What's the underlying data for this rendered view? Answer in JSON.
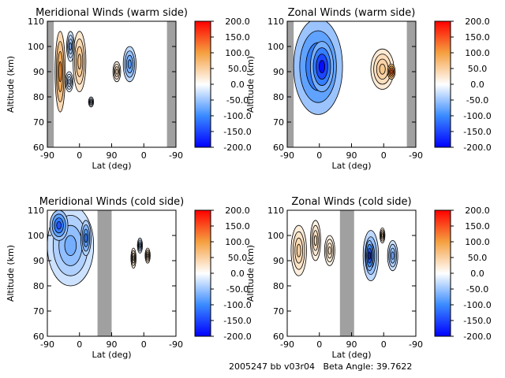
{
  "footer": {
    "id_text": "2005247 bb v03r04",
    "beta_label": "Beta Angle:",
    "beta_value": "39.7622"
  },
  "colors": {
    "negative_max": "#0000ff",
    "negative_mid": "#3a8bff",
    "zero": "#ffffff",
    "positive_mid": "#f5a040",
    "positive_max": "#ff0000",
    "no_data": "#a0a0a0"
  },
  "chart_data": [
    {
      "type": "heatmap",
      "title": "Meridional Winds (warm side)",
      "xlabel": "Lat (deg)",
      "ylabel": "Altitude (km)",
      "x_ticks": [
        "-90",
        "0",
        "90",
        "0",
        "-90"
      ],
      "y_ticks": [
        "60",
        "70",
        "80",
        "90",
        "100",
        "110"
      ],
      "ylim": [
        60,
        110
      ],
      "colorbar": {
        "ticks": [
          "200.0",
          "150.0",
          "100.0",
          "50.0",
          "0.0",
          "-50.0",
          "-100.0",
          "-150.0",
          "-200.0"
        ],
        "range": [
          -200,
          200
        ]
      },
      "features": [
        {
          "kind": "no_data",
          "x_from": 0.0,
          "x_to": 0.05
        },
        {
          "kind": "no_data",
          "x_from": 0.93,
          "x_to": 1.0
        },
        {
          "kind": "blob",
          "x": 0.1,
          "y": 90,
          "rx": 0.04,
          "ry": 16,
          "value": 110
        },
        {
          "kind": "blob",
          "x": 0.25,
          "y": 94,
          "rx": 0.05,
          "ry": 12,
          "value": 70
        },
        {
          "kind": "blob",
          "x": 0.18,
          "y": 100,
          "rx": 0.03,
          "ry": 6,
          "value": -60
        },
        {
          "kind": "blob",
          "x": 0.17,
          "y": 86,
          "rx": 0.03,
          "ry": 4,
          "value": -40
        },
        {
          "kind": "blob",
          "x": 0.34,
          "y": 78,
          "rx": 0.02,
          "ry": 2,
          "value": -30
        },
        {
          "kind": "blob",
          "x": 0.64,
          "y": 93,
          "rx": 0.05,
          "ry": 7,
          "value": -90
        },
        {
          "kind": "blob",
          "x": 0.54,
          "y": 90,
          "rx": 0.03,
          "ry": 4,
          "value": 40
        }
      ]
    },
    {
      "type": "heatmap",
      "title": "Zonal Winds (warm side)",
      "xlabel": "Lat (deg)",
      "ylabel": "Altitude (km)",
      "x_ticks": [
        "-90",
        "0",
        "90",
        "0",
        "-90"
      ],
      "y_ticks": [
        "60",
        "70",
        "80",
        "90",
        "100",
        "110"
      ],
      "ylim": [
        60,
        110
      ],
      "colorbar": {
        "ticks": [
          "200.0",
          "150.0",
          "100.0",
          "50.0",
          "0.0",
          "-50.0",
          "-100.0",
          "-150.0",
          "-200.0"
        ],
        "range": [
          -200,
          200
        ]
      },
      "features": [
        {
          "kind": "no_data",
          "x_from": 0.0,
          "x_to": 0.05
        },
        {
          "kind": "no_data",
          "x_from": 0.93,
          "x_to": 1.0
        },
        {
          "kind": "blob",
          "x": 0.24,
          "y": 92,
          "rx": 0.19,
          "ry": 19,
          "value": -140
        },
        {
          "kind": "blob",
          "x": 0.27,
          "y": 92,
          "rx": 0.09,
          "ry": 10,
          "value": -190
        },
        {
          "kind": "blob",
          "x": 0.74,
          "y": 91,
          "rx": 0.09,
          "ry": 8,
          "value": 60
        },
        {
          "kind": "blob",
          "x": 0.81,
          "y": 90,
          "rx": 0.03,
          "ry": 3,
          "value": 160
        }
      ]
    },
    {
      "type": "heatmap",
      "title": "Meridional Winds (cold side)",
      "xlabel": "Lat (deg)",
      "ylabel": "Altitude (km)",
      "x_ticks": [
        "-90",
        "0",
        "90",
        "0",
        "-90"
      ],
      "y_ticks": [
        "60",
        "70",
        "80",
        "90",
        "100",
        "110"
      ],
      "ylim": [
        60,
        110
      ],
      "colorbar": {
        "ticks": [
          "200.0",
          "150.0",
          "100.0",
          "50.0",
          "0.0",
          "-50.0",
          "-100.0",
          "-150.0",
          "-200.0"
        ],
        "range": [
          -200,
          200
        ]
      },
      "features": [
        {
          "kind": "no_data",
          "x_from": 0.39,
          "x_to": 0.5
        },
        {
          "kind": "blob",
          "x": 0.18,
          "y": 96,
          "rx": 0.18,
          "ry": 16,
          "value": -70
        },
        {
          "kind": "blob",
          "x": 0.09,
          "y": 104,
          "rx": 0.07,
          "ry": 6,
          "value": -140
        },
        {
          "kind": "blob",
          "x": 0.3,
          "y": 99,
          "rx": 0.04,
          "ry": 7,
          "value": -110
        },
        {
          "kind": "blob",
          "x": 0.67,
          "y": 91,
          "rx": 0.02,
          "ry": 4,
          "value": 50
        },
        {
          "kind": "blob",
          "x": 0.78,
          "y": 92,
          "rx": 0.02,
          "ry": 3,
          "value": 60
        },
        {
          "kind": "blob",
          "x": 0.72,
          "y": 96,
          "rx": 0.02,
          "ry": 3,
          "value": -50
        }
      ]
    },
    {
      "type": "heatmap",
      "title": "Zonal Winds (cold side)",
      "xlabel": "Lat (deg)",
      "ylabel": "Altitude (km)",
      "x_ticks": [
        "-90",
        "0",
        "90",
        "0",
        "-90"
      ],
      "y_ticks": [
        "60",
        "70",
        "80",
        "90",
        "100",
        "110"
      ],
      "ylim": [
        60,
        110
      ],
      "colorbar": {
        "ticks": [
          "200.0",
          "150.0",
          "100.0",
          "50.0",
          "0.0",
          "-50.0",
          "-100.0",
          "-150.0",
          "-200.0"
        ],
        "range": [
          -200,
          200
        ]
      },
      "features": [
        {
          "kind": "no_data",
          "x_from": 0.41,
          "x_to": 0.52
        },
        {
          "kind": "blob",
          "x": 0.09,
          "y": 94,
          "rx": 0.06,
          "ry": 10,
          "value": 50
        },
        {
          "kind": "blob",
          "x": 0.22,
          "y": 98,
          "rx": 0.04,
          "ry": 8,
          "value": 40
        },
        {
          "kind": "blob",
          "x": 0.33,
          "y": 94,
          "rx": 0.04,
          "ry": 6,
          "value": 35
        },
        {
          "kind": "blob",
          "x": 0.65,
          "y": 92,
          "rx": 0.06,
          "ry": 10,
          "value": -90
        },
        {
          "kind": "blob",
          "x": 0.64,
          "y": 92,
          "rx": 0.03,
          "ry": 6,
          "value": -170
        },
        {
          "kind": "blob",
          "x": 0.82,
          "y": 92,
          "rx": 0.04,
          "ry": 6,
          "value": -70
        },
        {
          "kind": "blob",
          "x": 0.74,
          "y": 100,
          "rx": 0.02,
          "ry": 3,
          "value": 40
        }
      ]
    }
  ]
}
